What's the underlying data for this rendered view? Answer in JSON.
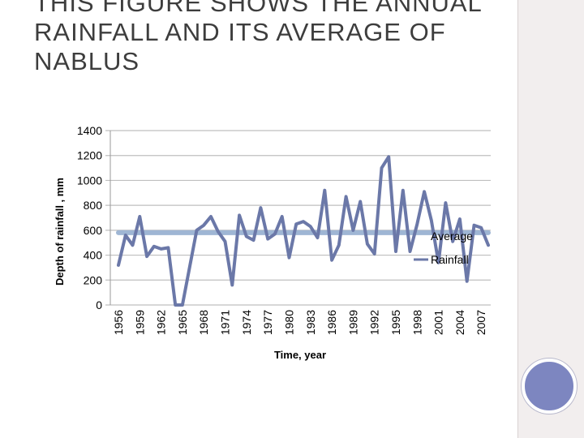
{
  "slide": {
    "title": "THIS  FIGURE SHOWS THE ANNUAL RAINFALL AND ITS AVERAGE OF NABLUS"
  },
  "colors": {
    "rainfall": "#6b78a8",
    "average": "#9fb6d4",
    "grid": "#bfbfbf",
    "rail": "#f2eeee",
    "circle": "#7d86c0"
  },
  "chart_data": {
    "type": "line",
    "xlabel": "Time, year",
    "ylabel": "Depth of rainfall , mm",
    "ylim": [
      0,
      1400
    ],
    "yticks": [
      0,
      200,
      400,
      600,
      800,
      1000,
      1200,
      1400
    ],
    "xtick_labels": [
      "1956",
      "1959",
      "1962",
      "1965",
      "1968",
      "1971",
      "1974",
      "1977",
      "1980",
      "1983",
      "1986",
      "1989",
      "1992",
      "1995",
      "1998",
      "2001",
      "2004",
      "2007"
    ],
    "x": [
      1956,
      1957,
      1958,
      1959,
      1960,
      1961,
      1962,
      1963,
      1964,
      1965,
      1966,
      1967,
      1968,
      1969,
      1970,
      1971,
      1972,
      1973,
      1974,
      1975,
      1976,
      1977,
      1978,
      1979,
      1980,
      1981,
      1982,
      1983,
      1984,
      1985,
      1986,
      1987,
      1988,
      1989,
      1990,
      1991,
      1992,
      1993,
      1994,
      1995,
      1996,
      1997,
      1998,
      1999,
      2000,
      2001,
      2002,
      2003,
      2004,
      2005,
      2006,
      2007,
      2008
    ],
    "series": [
      {
        "name": "Rainfall",
        "values": [
          320,
          560,
          480,
          710,
          390,
          470,
          450,
          460,
          0,
          0,
          300,
          600,
          640,
          710,
          590,
          510,
          160,
          720,
          550,
          520,
          780,
          530,
          570,
          710,
          380,
          650,
          670,
          630,
          540,
          920,
          360,
          480,
          870,
          600,
          830,
          490,
          410,
          1100,
          1190,
          430,
          920,
          430,
          650,
          910,
          680,
          340,
          820,
          510,
          690,
          190,
          640,
          620,
          480
        ]
      },
      {
        "name": "Average",
        "values": [
          580,
          580,
          580,
          580,
          580,
          580,
          580,
          580,
          580,
          580,
          580,
          580,
          580,
          580,
          580,
          580,
          580,
          580,
          580,
          580,
          580,
          580,
          580,
          580,
          580,
          580,
          580,
          580,
          580,
          580,
          580,
          580,
          580,
          580,
          580,
          580,
          580,
          580,
          580,
          580,
          580,
          580,
          580,
          580,
          580,
          580,
          580,
          580,
          580,
          580,
          580,
          580,
          580
        ]
      }
    ],
    "legend": [
      {
        "series": "Rainfall",
        "label": ""
      },
      {
        "series": "Average",
        "label_line1": "Average",
        "label_line2": "Rainfall"
      }
    ],
    "legend_position": "right",
    "grid": true
  }
}
